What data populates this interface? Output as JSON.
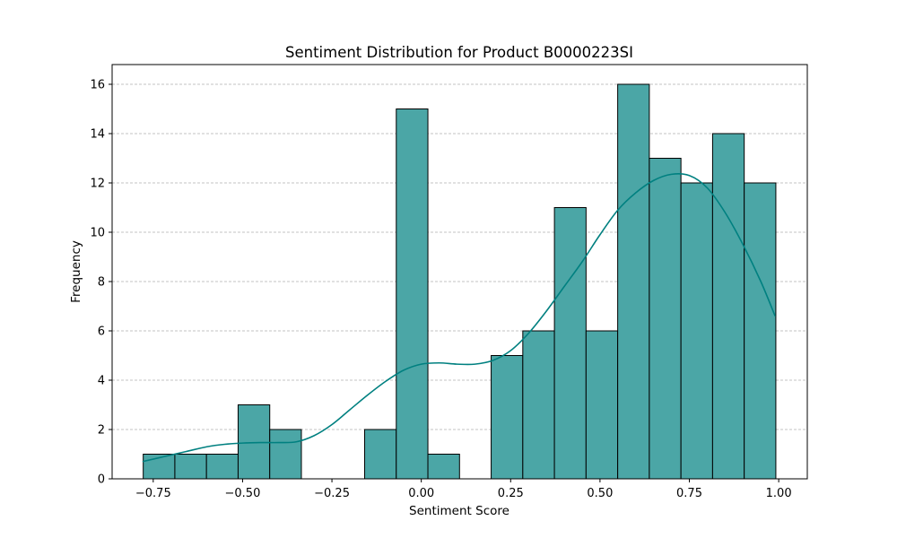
{
  "chart_data": {
    "type": "bar",
    "title": "Sentiment Distribution for Product B0000223SI",
    "xlabel": "Sentiment Score",
    "ylabel": "Frequency",
    "xlim": [
      -0.865,
      1.08
    ],
    "ylim": [
      0,
      16.8
    ],
    "xticks": [
      -0.75,
      -0.5,
      -0.25,
      0.0,
      0.25,
      0.5,
      0.75,
      1.0
    ],
    "xtick_labels": [
      "−0.75",
      "−0.50",
      "−0.25",
      "0.00",
      "0.25",
      "0.50",
      "0.75",
      "1.00"
    ],
    "yticks": [
      0,
      2,
      4,
      6,
      8,
      10,
      12,
      14,
      16
    ],
    "ytick_labels": [
      "0",
      "2",
      "4",
      "6",
      "8",
      "10",
      "12",
      "14",
      "16"
    ],
    "grid": "horizontal-dashed",
    "bin_edges": [
      -0.778,
      -0.6895,
      -0.601,
      -0.5125,
      -0.424,
      -0.3355,
      -0.247,
      -0.1585,
      -0.07,
      0.0185,
      0.107,
      0.1955,
      0.284,
      0.3725,
      0.461,
      0.5495,
      0.638,
      0.7265,
      0.815,
      0.9035,
      0.992
    ],
    "values": [
      1,
      1,
      1,
      3,
      2,
      0,
      0,
      2,
      15,
      1,
      0,
      5,
      6,
      11,
      6,
      16,
      13,
      12,
      14,
      12
    ],
    "bar_color": "#4ba6a6",
    "bar_edge_color": "#000000",
    "kde": {
      "color": "#008080",
      "x": [
        -0.78,
        -0.72,
        -0.66,
        -0.6,
        -0.55,
        -0.5,
        -0.45,
        -0.4,
        -0.35,
        -0.3,
        -0.25,
        -0.2,
        -0.15,
        -0.1,
        -0.05,
        0.0,
        0.05,
        0.1,
        0.15,
        0.2,
        0.25,
        0.3,
        0.35,
        0.4,
        0.45,
        0.5,
        0.55,
        0.6,
        0.65,
        0.7,
        0.75,
        0.8,
        0.85,
        0.9,
        0.95,
        0.99
      ],
      "y": [
        0.7,
        0.9,
        1.1,
        1.3,
        1.4,
        1.45,
        1.47,
        1.47,
        1.5,
        1.75,
        2.2,
        2.8,
        3.4,
        3.95,
        4.4,
        4.65,
        4.7,
        4.65,
        4.65,
        4.8,
        5.2,
        5.9,
        6.8,
        7.8,
        8.8,
        9.9,
        10.9,
        11.6,
        12.1,
        12.35,
        12.3,
        11.8,
        10.8,
        9.5,
        8.0,
        6.6
      ]
    }
  }
}
